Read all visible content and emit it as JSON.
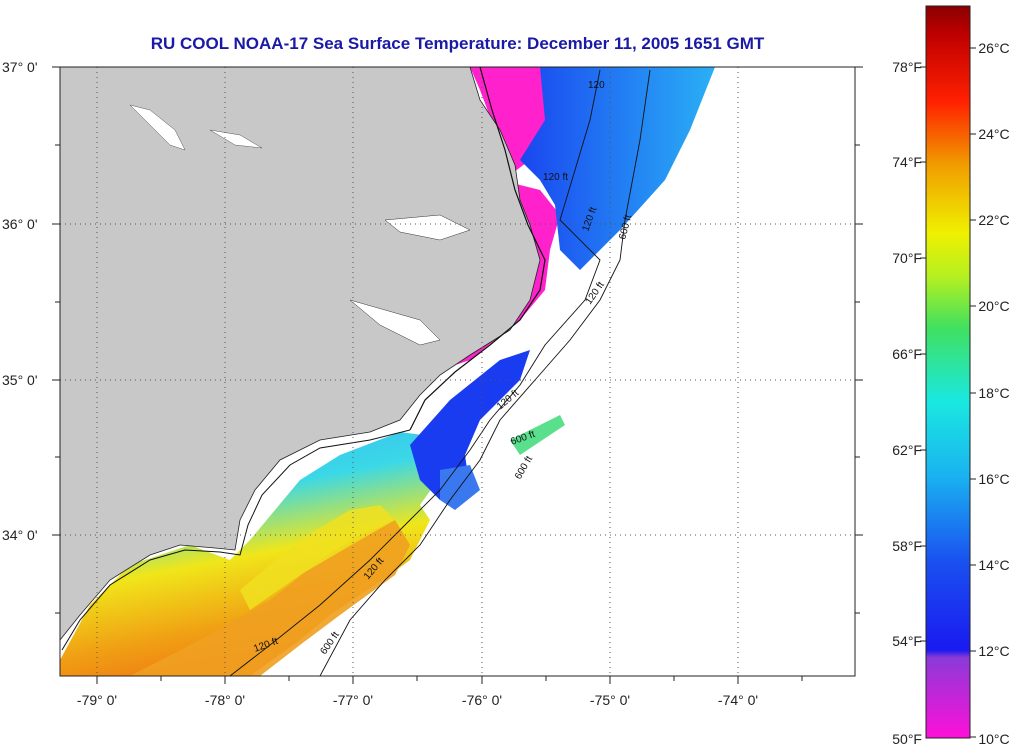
{
  "title": "RU COOL  NOAA-17  Sea Surface Temperature:  December 11, 2005 1651 GMT",
  "map": {
    "lat_labels": [
      "37° 0'",
      "36° 0'",
      "35° 0'",
      "34° 0'"
    ],
    "lon_labels": [
      "-79° 0'",
      "-78° 0'",
      "-77° 0'",
      "-76° 0'",
      "-75° 0'",
      "-74° 0'"
    ],
    "isobath_labels": [
      "120",
      "120 ft",
      "120 ft",
      "120 ft",
      "600 ft",
      "120 ft",
      "600 ft",
      "600 ft",
      "120 ft",
      "120 ft",
      "600 ft"
    ]
  },
  "colorbar": {
    "fahrenheit_labels": [
      "78°F",
      "74°F",
      "70°F",
      "66°F",
      "62°F",
      "58°F",
      "54°F",
      "50°F"
    ],
    "celsius_labels": [
      "26°C",
      "24°C",
      "22°C",
      "20°C",
      "18°C",
      "16°C",
      "14°C",
      "12°C",
      "10°C"
    ]
  },
  "colors": {
    "land": "#c8c8c8",
    "title": "#1a1aa6",
    "cold_magenta": "#ff22cc",
    "blue": "#1a3cf0",
    "cyan": "#22c8f0",
    "yellow": "#f0e61a",
    "orange": "#f08c14"
  }
}
